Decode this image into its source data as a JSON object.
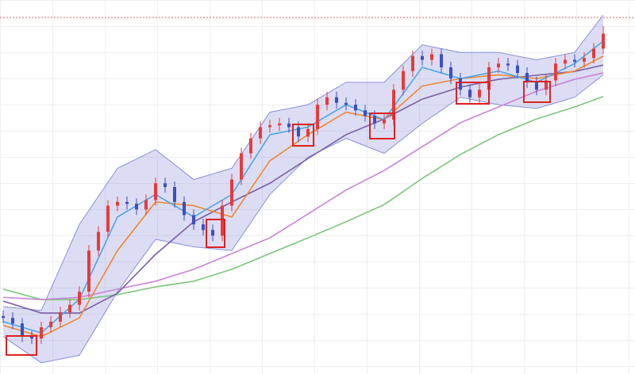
{
  "chart_data": {
    "type": "candlestick",
    "xlim": [
      -0.333,
      66.333
    ],
    "ylim": [
      0,
      100
    ],
    "x": [
      0,
      1,
      2,
      3,
      4,
      5,
      6,
      7,
      8,
      9,
      10,
      11,
      12,
      13,
      14,
      15,
      16,
      17,
      18,
      19,
      20,
      21,
      22,
      23,
      24,
      25,
      26,
      27,
      28,
      29,
      30,
      31,
      32,
      33,
      34,
      35,
      36,
      37,
      38,
      39,
      40,
      41,
      42,
      43,
      44,
      45,
      46,
      47,
      48,
      49,
      50,
      51,
      52,
      53,
      54,
      55,
      56,
      57,
      58,
      59,
      60,
      61,
      62,
      63
    ],
    "open": [
      15.5,
      15,
      13.5,
      10,
      9.5,
      12.5,
      14,
      16.5,
      18.5,
      22,
      33,
      38,
      45,
      46,
      45.5,
      44,
      46.5,
      51,
      50,
      46,
      42.5,
      40,
      38.5,
      37,
      45,
      52,
      59,
      63,
      66,
      66.5,
      67,
      66,
      63.5,
      65.5,
      72,
      74,
      72.5,
      72,
      70.5,
      69,
      67,
      68,
      76,
      81,
      85,
      84,
      85.5,
      82,
      79,
      76,
      74,
      76,
      82,
      83,
      82.5,
      80.5,
      78,
      76,
      78.5,
      83,
      84,
      83.5,
      84.5,
      87
    ],
    "close": [
      15,
      13.5,
      10,
      9.5,
      12.5,
      14,
      16.5,
      18.5,
      22,
      33,
      38,
      45,
      46,
      45.5,
      44,
      46.5,
      51,
      50,
      46,
      42.5,
      40,
      38.5,
      37,
      45,
      52,
      59,
      63,
      66,
      66.5,
      67,
      66,
      63.5,
      65.5,
      72,
      74,
      72.5,
      72,
      70.5,
      69,
      67,
      68,
      76,
      81,
      85,
      84,
      85.5,
      82,
      79,
      76,
      74,
      76,
      82,
      83,
      82.5,
      80.5,
      78,
      76,
      78.5,
      83,
      84,
      83.5,
      84.5,
      87,
      91
    ],
    "high": [
      17,
      16.5,
      15,
      11.5,
      14,
      15.5,
      18,
      20,
      23.5,
      34.5,
      39.5,
      46.5,
      47.5,
      47.5,
      47,
      48,
      52.5,
      52.5,
      51.5,
      47.5,
      44,
      41.5,
      40,
      46.5,
      53.5,
      60.5,
      64.5,
      67.5,
      68,
      68.5,
      68.5,
      67.5,
      67,
      73.5,
      75.5,
      75.5,
      74,
      73.5,
      72,
      70.5,
      69.5,
      77.5,
      82.5,
      86.5,
      86.5,
      87,
      87,
      83.5,
      80.5,
      77.5,
      77.5,
      83.5,
      84.5,
      84.5,
      84,
      82,
      79.5,
      80,
      84.5,
      85.5,
      85.5,
      86,
      88.5,
      93
    ],
    "low": [
      13.5,
      12,
      8.5,
      8,
      8,
      11,
      12.5,
      15,
      17,
      20.5,
      31.5,
      36.5,
      43.5,
      44,
      42.5,
      42.5,
      45,
      48.5,
      44.5,
      41,
      38.5,
      37,
      35.5,
      35.5,
      43.5,
      50.5,
      57.5,
      61.5,
      64.5,
      65,
      64.5,
      62,
      62,
      64,
      70.5,
      71,
      70.5,
      69,
      67.5,
      65.5,
      65.5,
      66.5,
      74.5,
      79.5,
      82.5,
      82.5,
      80.5,
      77.5,
      74.5,
      72.5,
      72.5,
      74.5,
      80.5,
      81,
      79,
      76.5,
      74.5,
      74.5,
      77,
      81.5,
      82,
      82,
      83,
      85.5
    ],
    "up_color": "#e83a3a",
    "down_color": "#3b4fc4",
    "hline": {
      "value": 95.3,
      "color": "#e06060"
    },
    "band": {
      "color": "#8a8fdc",
      "x": [
        0,
        4,
        8,
        12,
        16,
        20,
        24,
        28,
        32,
        36,
        40,
        44,
        48,
        52,
        56,
        60,
        63
      ],
      "upper": [
        18,
        17,
        40,
        55,
        60,
        52,
        55,
        70,
        72,
        78,
        78,
        88,
        86,
        86,
        84,
        86,
        96
      ],
      "lower": [
        10,
        3,
        5,
        22,
        36,
        34,
        33,
        48,
        58,
        63,
        59,
        67,
        74,
        72,
        71,
        74,
        80
      ]
    },
    "overlays": {
      "x": [
        0,
        4,
        8,
        12,
        16,
        20,
        24,
        28,
        32,
        36,
        40,
        44,
        48,
        52,
        56,
        60,
        63
      ],
      "series": [
        {
          "color": "#7bc67b",
          "values": [
            22.7,
            19.9,
            19.9,
            21.2,
            23.3,
            24.8,
            28,
            32.2,
            36.4,
            40.7,
            45.3,
            52.3,
            58.7,
            64,
            68.2,
            71.4,
            74.2
          ]
        },
        {
          "color": "#c983d6",
          "values": [
            20.5,
            19.9,
            20.5,
            22.7,
            24.8,
            28,
            32.2,
            36.4,
            42.8,
            49.2,
            54.4,
            60.8,
            67.2,
            71.4,
            75.6,
            78.8,
            80.5
          ]
        },
        {
          "color": "#7b5ea7",
          "values": [
            19.5,
            16.3,
            16.3,
            21.6,
            32,
            40.7,
            46,
            51,
            57.6,
            64,
            68.2,
            73.5,
            76.7,
            78.8,
            79.9,
            80.9,
            82.6
          ]
        },
        {
          "color": "#f0862e",
          "values": [
            13,
            10,
            15,
            33,
            46,
            45,
            42,
            57,
            64,
            70,
            68,
            77,
            79,
            80,
            79,
            81,
            85
          ]
        },
        {
          "color": "#4da6e8",
          "values": [
            14,
            11,
            20,
            42,
            48,
            42,
            48,
            64,
            66,
            72,
            68,
            82,
            79,
            81,
            78,
            83,
            89
          ]
        }
      ]
    }
  }
}
